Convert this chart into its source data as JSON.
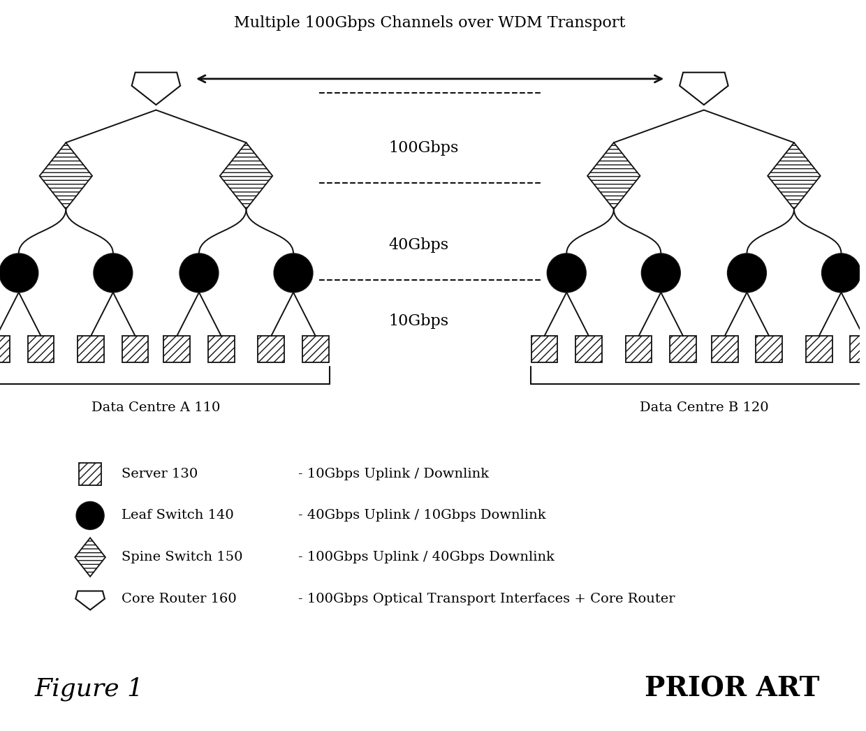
{
  "title": "Multiple 100Gbps Channels over WDM Transport",
  "fig_label": "Figure 1",
  "prior_art_label": "PRIOR ART",
  "dc_a_label": "Data Centre A 110",
  "dc_b_label": "Data Centre B 120",
  "legend_items": [
    {
      "shape": "server",
      "label": "Server 130"
    },
    {
      "shape": "leaf",
      "label": "Leaf Switch 140"
    },
    {
      "shape": "spine",
      "label": "Spine Switch 150"
    },
    {
      "shape": "core",
      "label": "Core Router 160"
    }
  ],
  "legend_descriptions": [
    "- 10Gbps Uplink / Downlink",
    "- 40Gbps Uplink / 10Gbps Downlink",
    "- 100Gbps Uplink / 40Gbps Downlink",
    "- 100Gbps Optical Transport Interfaces + Core Router"
  ],
  "speed_labels": [
    "100Gbps",
    "40Gbps",
    "10Gbps"
  ],
  "line_color": "#111111",
  "bg_color": "#ffffff"
}
